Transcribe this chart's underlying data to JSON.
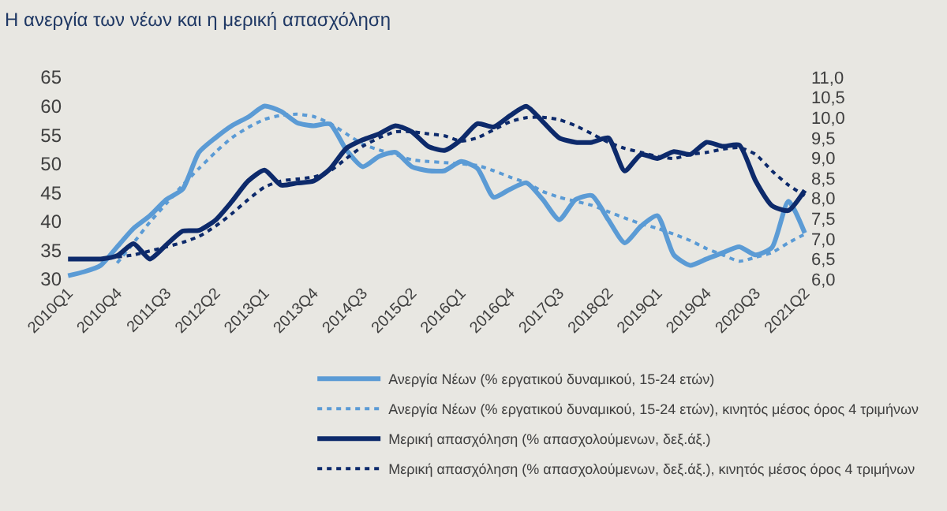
{
  "chart_data": {
    "type": "line",
    "title": "Η ανεργία των νέων και η μερική απασχόληση",
    "categories": [
      "2010Q1",
      null,
      null,
      "2010Q4",
      null,
      null,
      "2011Q3",
      null,
      null,
      "2012Q2",
      null,
      null,
      "2013Q1",
      null,
      null,
      "2013Q4",
      null,
      null,
      "2014Q3",
      null,
      null,
      "2015Q2",
      null,
      null,
      "2016Q1",
      null,
      null,
      "2016Q4",
      null,
      null,
      "2017Q3",
      null,
      null,
      "2018Q2",
      null,
      null,
      "2019Q1",
      null,
      null,
      "2019Q4",
      null,
      null,
      "2020Q3",
      null,
      null,
      "2021Q2"
    ],
    "series": [
      {
        "name": "Ανεργία Νέων (% εργατικού δυναμικού, 15-24 ετών)",
        "color": "#5b9bd5",
        "line_style": "solid",
        "values": [
          30.6,
          31.3,
          32.4,
          35.6,
          38.8,
          41.0,
          43.8,
          45.6,
          52.0,
          54.5,
          56.6,
          58.1,
          60.0,
          59.1,
          57.1,
          56.6,
          56.9,
          52.4,
          49.5,
          51.3,
          52.0,
          49.5,
          48.8,
          48.8,
          50.4,
          49.2,
          44.2,
          45.6,
          46.7,
          43.8,
          40.3,
          43.8,
          44.5,
          40.3,
          36.3,
          39.2,
          41.0,
          34.2,
          32.4,
          33.5,
          34.6,
          35.6,
          34.2,
          35.5,
          43.5,
          38.0
        ]
      },
      {
        "name": "Ανεργία Νέων (% εργατικού δυναμικού, 15-24 ετών), κινητός μέσος όρος 4 τριμήνων",
        "color": "#5b9bd5",
        "line_style": "dotted",
        "values": [
          null,
          null,
          null,
          32.8,
          36.3,
          39.9,
          43.1,
          46.3,
          49.2,
          52.0,
          54.5,
          56.3,
          57.7,
          58.4,
          58.6,
          58.2,
          57.0,
          55.2,
          53.4,
          52.4,
          51.6,
          50.7,
          50.4,
          50.2,
          50.0,
          49.7,
          48.8,
          47.7,
          46.7,
          45.2,
          44.2,
          43.5,
          42.8,
          41.7,
          40.6,
          39.6,
          38.8,
          37.8,
          36.7,
          35.3,
          34.2,
          33.1,
          33.8,
          34.6,
          36.3,
          37.8
        ]
      },
      {
        "name": "Μερική απασχόληση (% απασχολούμενων, δεξ.άξ.)",
        "color": "#0d2a6b",
        "line_style": "solid",
        "axis": "y2",
        "values": [
          6.5,
          6.5,
          6.5,
          6.58,
          6.88,
          6.5,
          6.85,
          7.19,
          7.21,
          7.46,
          7.92,
          8.43,
          8.7,
          8.33,
          8.38,
          8.43,
          8.73,
          9.24,
          9.45,
          9.6,
          9.8,
          9.65,
          9.29,
          9.19,
          9.45,
          9.85,
          9.77,
          10.05,
          10.28,
          9.9,
          9.5,
          9.39,
          9.39,
          9.5,
          8.68,
          9.09,
          8.99,
          9.16,
          9.09,
          9.39,
          9.29,
          9.32,
          8.43,
          7.82,
          7.7,
          8.2
        ]
      },
      {
        "name": "Μερική απασχόληση (% απασχολούμενων, δεξ.άξ.), κινητός μέσος όρος 4 τριμήνων",
        "color": "#0d2a6b",
        "line_style": "dotted",
        "axis": "y2",
        "values": [
          null,
          null,
          null,
          6.55,
          6.6,
          6.7,
          6.8,
          6.91,
          7.06,
          7.31,
          7.62,
          7.97,
          8.28,
          8.43,
          8.48,
          8.53,
          8.68,
          8.99,
          9.29,
          9.5,
          9.65,
          9.65,
          9.6,
          9.55,
          9.42,
          9.5,
          9.7,
          9.9,
          10.0,
          10.01,
          9.95,
          9.8,
          9.6,
          9.39,
          9.24,
          9.14,
          9.04,
          8.99,
          9.09,
          9.14,
          9.22,
          9.26,
          9.09,
          8.68,
          8.33,
          8.07
        ]
      }
    ],
    "ylim": [
      30,
      65
    ],
    "yticks": [
      30,
      35,
      40,
      45,
      50,
      55,
      60,
      65
    ],
    "y2lim": [
      6,
      11
    ],
    "y2ticks": [
      {
        "value": 6,
        "label": "6,0"
      },
      {
        "value": 6.5,
        "label": "6,5"
      },
      {
        "value": 7,
        "label": "7,0"
      },
      {
        "value": 7.5,
        "label": "7,5"
      },
      {
        "value": 8,
        "label": "8,0"
      },
      {
        "value": 8.5,
        "label": "8,5"
      },
      {
        "value": 9,
        "label": "9,0"
      },
      {
        "value": 9.5,
        "label": "9,5"
      },
      {
        "value": 10,
        "label": "10,0"
      },
      {
        "value": 10.5,
        "label": "10,5"
      },
      {
        "value": 11,
        "label": "11,0"
      }
    ],
    "grid": false,
    "legend": "bottom"
  }
}
